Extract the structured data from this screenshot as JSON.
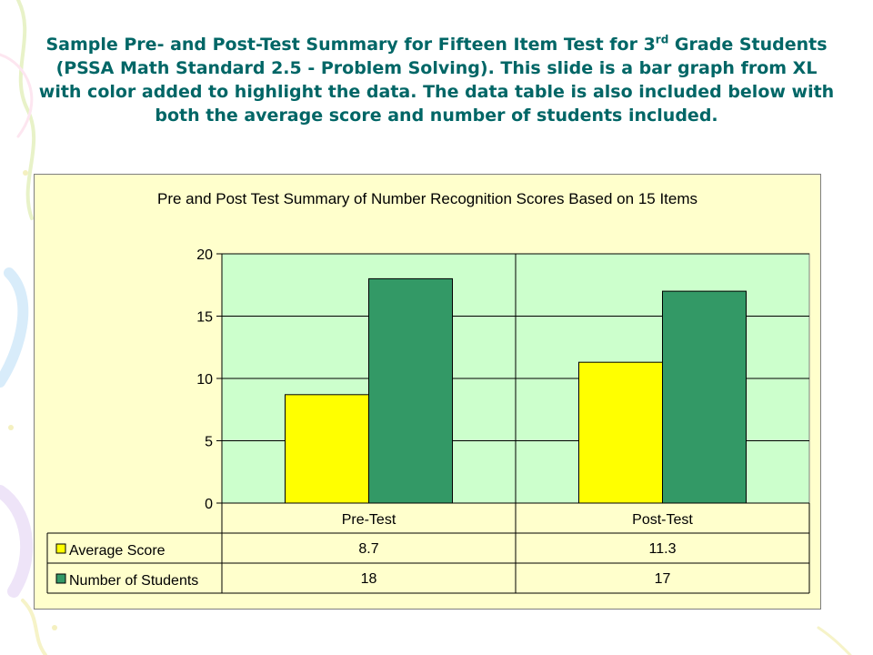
{
  "slide": {
    "title_main": "Sample Pre- and Post-Test Summary for Fifteen Item Test for 3",
    "title_sup": "rd",
    "title_rest": " Grade Students (PSSA Math Standard 2.5 - Problem Solving).  This slide is a bar graph from XL with color added to highlight the data.  The data table is also included below with both the average score and number of students included."
  },
  "chart_data": {
    "type": "bar",
    "title": "Pre and Post Test Summary of Number Recognition Scores Based on  15 Items",
    "categories": [
      "Pre-Test",
      "Post-Test"
    ],
    "series": [
      {
        "name": "Average Score",
        "values": [
          8.7,
          11.3
        ],
        "display": [
          "8.7",
          "11.3"
        ],
        "color": "#ffff00"
      },
      {
        "name": "Number of Students",
        "values": [
          18,
          17
        ],
        "display": [
          "18",
          "17"
        ],
        "color": "#339966"
      }
    ],
    "ylim": [
      0,
      20
    ],
    "yticks": [
      0,
      5,
      10,
      15,
      20
    ],
    "xlabel": "",
    "ylabel": "",
    "grid": true,
    "plot_background": "#ccffcc",
    "chart_background": "#ffffcc",
    "legend": "data-table"
  }
}
